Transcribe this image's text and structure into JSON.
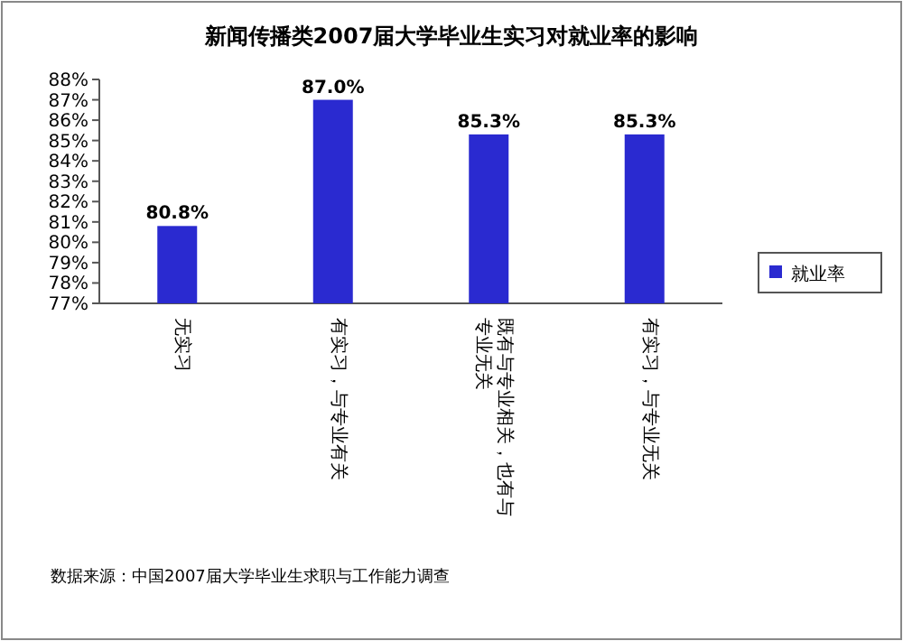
{
  "chart_data": {
    "type": "bar",
    "title": "新闻传播类2007届大学毕业生实习对就业率的影响",
    "categories": [
      "无实习",
      "有实习，与专业有关",
      "既有与专业相关，也有与专业无关",
      "有实习，与专业无关"
    ],
    "series": [
      {
        "name": "就业率",
        "color": "#2a2ad0",
        "values": [
          80.8,
          87.0,
          85.3,
          85.3
        ],
        "value_labels": [
          "80.8%",
          "87.0%",
          "85.3%",
          "85.3%"
        ]
      }
    ],
    "ylim": [
      77,
      88
    ],
    "yticks": [
      {
        "value": 77,
        "label": "77%"
      },
      {
        "value": 78,
        "label": "78%"
      },
      {
        "value": 79,
        "label": "79%"
      },
      {
        "value": 80,
        "label": "80%"
      },
      {
        "value": 81,
        "label": "81%"
      },
      {
        "value": 82,
        "label": "82%"
      },
      {
        "value": 83,
        "label": "83%"
      },
      {
        "value": 84,
        "label": "84%"
      },
      {
        "value": 85,
        "label": "85%"
      },
      {
        "value": 86,
        "label": "86%"
      },
      {
        "value": 87,
        "label": "87%"
      },
      {
        "value": 88,
        "label": "88%"
      }
    ],
    "legend": "right",
    "grid": false,
    "annotations": [
      "数据来源：中国2007届大学毕业生求职与工作能力调查"
    ]
  }
}
